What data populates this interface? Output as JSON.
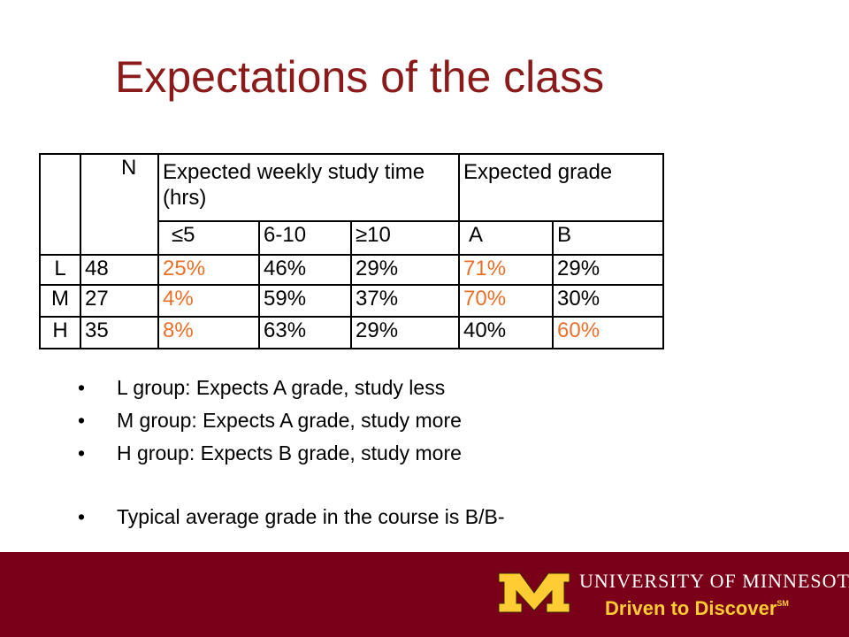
{
  "slide": {
    "title": "Expectations of the class"
  },
  "table": {
    "header": {
      "n": "N",
      "study_time": "Expected weekly study time (hrs)",
      "grade": "Expected grade",
      "sub": [
        "≤5",
        "6-10",
        "≥10",
        "A",
        "B"
      ]
    },
    "rows": [
      {
        "label": "L",
        "n": "48",
        "cells": [
          "25%",
          "46%",
          "29%",
          "71%",
          "29%"
        ]
      },
      {
        "label": "M",
        "n": "27",
        "cells": [
          "4%",
          "59%",
          "37%",
          "70%",
          "30%"
        ]
      },
      {
        "label": "H",
        "n": "35",
        "cells": [
          "8%",
          "63%",
          "29%",
          "40%",
          "60%"
        ]
      }
    ],
    "highlight_color": "#e8702a"
  },
  "bullets": [
    "L group: Expects A grade, study less",
    "M group: Expects A grade, study more",
    "H group: Expects B grade, study more",
    "Typical average grade in the course is B/B-"
  ],
  "bullet_glyph": "•",
  "footer": {
    "university_name": "UNIVERSITY OF MINNESOTA",
    "tagline": "Driven to Discover",
    "tagline_mark": "SM",
    "background_color": "#7a0019",
    "gold_color": "#ffcc33"
  }
}
